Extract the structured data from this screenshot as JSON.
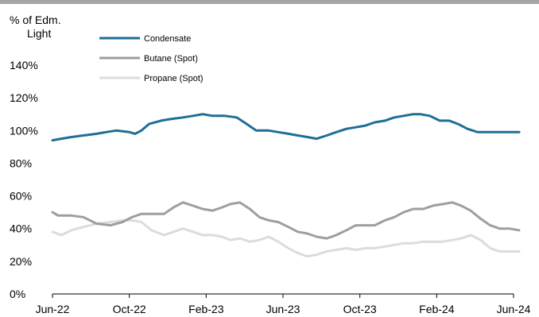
{
  "chart_data": {
    "type": "line",
    "ylabel": [
      "% of Edm.",
      "Light"
    ],
    "xlabel": "",
    "x_start": "2022-06",
    "x_end": "2024-06",
    "x_ticks": [
      "Jun-22",
      "Oct-22",
      "Feb-23",
      "Jun-23",
      "Oct-23",
      "Feb-24",
      "Jun-24"
    ],
    "y_ticks": [
      "0%",
      "20%",
      "40%",
      "60%",
      "80%",
      "100%",
      "120%",
      "140%"
    ],
    "ylim": [
      0,
      140
    ],
    "grid": false,
    "legend_position": "top-left",
    "series": [
      {
        "name": "Condensate",
        "color": "#1f6e95",
        "width": 3,
        "x": [
          "2022-06-01",
          "2022-06-15",
          "2022-07-01",
          "2022-07-20",
          "2022-08-10",
          "2022-08-25",
          "2022-09-10",
          "2022-10-01",
          "2022-10-10",
          "2022-10-20",
          "2022-11-01",
          "2022-11-20",
          "2022-12-05",
          "2022-12-25",
          "2023-01-10",
          "2023-01-25",
          "2023-02-10",
          "2023-03-01",
          "2023-03-20",
          "2023-04-05",
          "2023-04-20",
          "2023-05-10",
          "2023-05-25",
          "2023-06-10",
          "2023-06-25",
          "2023-07-10",
          "2023-07-25",
          "2023-08-10",
          "2023-08-25",
          "2023-09-10",
          "2023-09-25",
          "2023-10-10",
          "2023-10-25",
          "2023-11-10",
          "2023-11-25",
          "2023-12-10",
          "2023-12-25",
          "2024-01-05",
          "2024-01-20",
          "2024-02-05",
          "2024-02-20",
          "2024-03-05",
          "2024-03-20",
          "2024-04-05",
          "2024-04-20",
          "2024-05-10",
          "2024-05-25",
          "2024-06-10"
        ],
        "y": [
          94,
          95,
          96,
          97,
          98,
          99,
          100,
          99,
          98,
          100,
          104,
          106,
          107,
          108,
          109,
          110,
          109,
          109,
          108,
          104,
          100,
          100,
          99,
          98,
          97,
          96,
          95,
          97,
          99,
          101,
          102,
          103,
          105,
          106,
          108,
          109,
          110,
          110,
          109,
          106,
          106,
          104,
          101,
          99,
          99,
          99,
          99,
          99
        ]
      },
      {
        "name": "Butane (Spot)",
        "color": "#9e9e9e",
        "width": 3,
        "x": [
          "2022-06-01",
          "2022-06-10",
          "2022-07-01",
          "2022-07-20",
          "2022-08-10",
          "2022-09-01",
          "2022-09-20",
          "2022-10-05",
          "2022-10-20",
          "2022-11-10",
          "2022-11-25",
          "2022-12-10",
          "2022-12-25",
          "2023-01-10",
          "2023-01-25",
          "2023-02-10",
          "2023-02-25",
          "2023-03-10",
          "2023-03-25",
          "2023-04-10",
          "2023-04-25",
          "2023-05-10",
          "2023-05-25",
          "2023-06-10",
          "2023-06-25",
          "2023-07-10",
          "2023-07-25",
          "2023-08-10",
          "2023-08-25",
          "2023-09-10",
          "2023-09-25",
          "2023-10-10",
          "2023-10-25",
          "2023-11-10",
          "2023-11-25",
          "2023-12-10",
          "2023-12-25",
          "2024-01-10",
          "2024-01-25",
          "2024-02-10",
          "2024-02-25",
          "2024-03-10",
          "2024-03-25",
          "2024-04-10",
          "2024-04-25",
          "2024-05-10",
          "2024-05-25",
          "2024-06-10"
        ],
        "y": [
          50,
          48,
          48,
          47,
          43,
          42,
          44,
          47,
          49,
          49,
          49,
          53,
          56,
          54,
          52,
          51,
          53,
          55,
          56,
          52,
          47,
          45,
          44,
          41,
          38,
          37,
          35,
          34,
          36,
          39,
          42,
          42,
          42,
          45,
          47,
          50,
          52,
          52,
          54,
          55,
          56,
          54,
          51,
          46,
          42,
          40,
          40,
          39
        ]
      },
      {
        "name": "Propane (Spot)",
        "color": "#dcdcdc",
        "width": 3,
        "x": [
          "2022-06-01",
          "2022-06-15",
          "2022-07-01",
          "2022-07-20",
          "2022-08-10",
          "2022-09-01",
          "2022-09-20",
          "2022-10-05",
          "2022-10-20",
          "2022-11-05",
          "2022-11-25",
          "2022-12-10",
          "2022-12-25",
          "2023-01-10",
          "2023-01-25",
          "2023-02-10",
          "2023-02-25",
          "2023-03-10",
          "2023-03-25",
          "2023-04-10",
          "2023-04-25",
          "2023-05-10",
          "2023-05-25",
          "2023-06-10",
          "2023-06-25",
          "2023-07-10",
          "2023-07-25",
          "2023-08-10",
          "2023-08-25",
          "2023-09-10",
          "2023-09-25",
          "2023-10-10",
          "2023-10-25",
          "2023-11-10",
          "2023-11-25",
          "2023-12-10",
          "2023-12-25",
          "2024-01-10",
          "2024-01-25",
          "2024-02-10",
          "2024-02-25",
          "2024-03-10",
          "2024-03-25",
          "2024-04-10",
          "2024-04-25",
          "2024-05-10",
          "2024-05-25",
          "2024-06-10"
        ],
        "y": [
          38,
          36,
          39,
          41,
          43,
          44,
          45,
          45,
          44,
          39,
          36,
          38,
          40,
          38,
          36,
          36,
          35,
          33,
          34,
          32,
          33,
          35,
          32,
          28,
          25,
          23,
          24,
          26,
          27,
          28,
          27,
          28,
          28,
          29,
          30,
          31,
          31,
          32,
          32,
          32,
          33,
          34,
          36,
          33,
          28,
          26,
          26,
          26
        ]
      }
    ]
  }
}
